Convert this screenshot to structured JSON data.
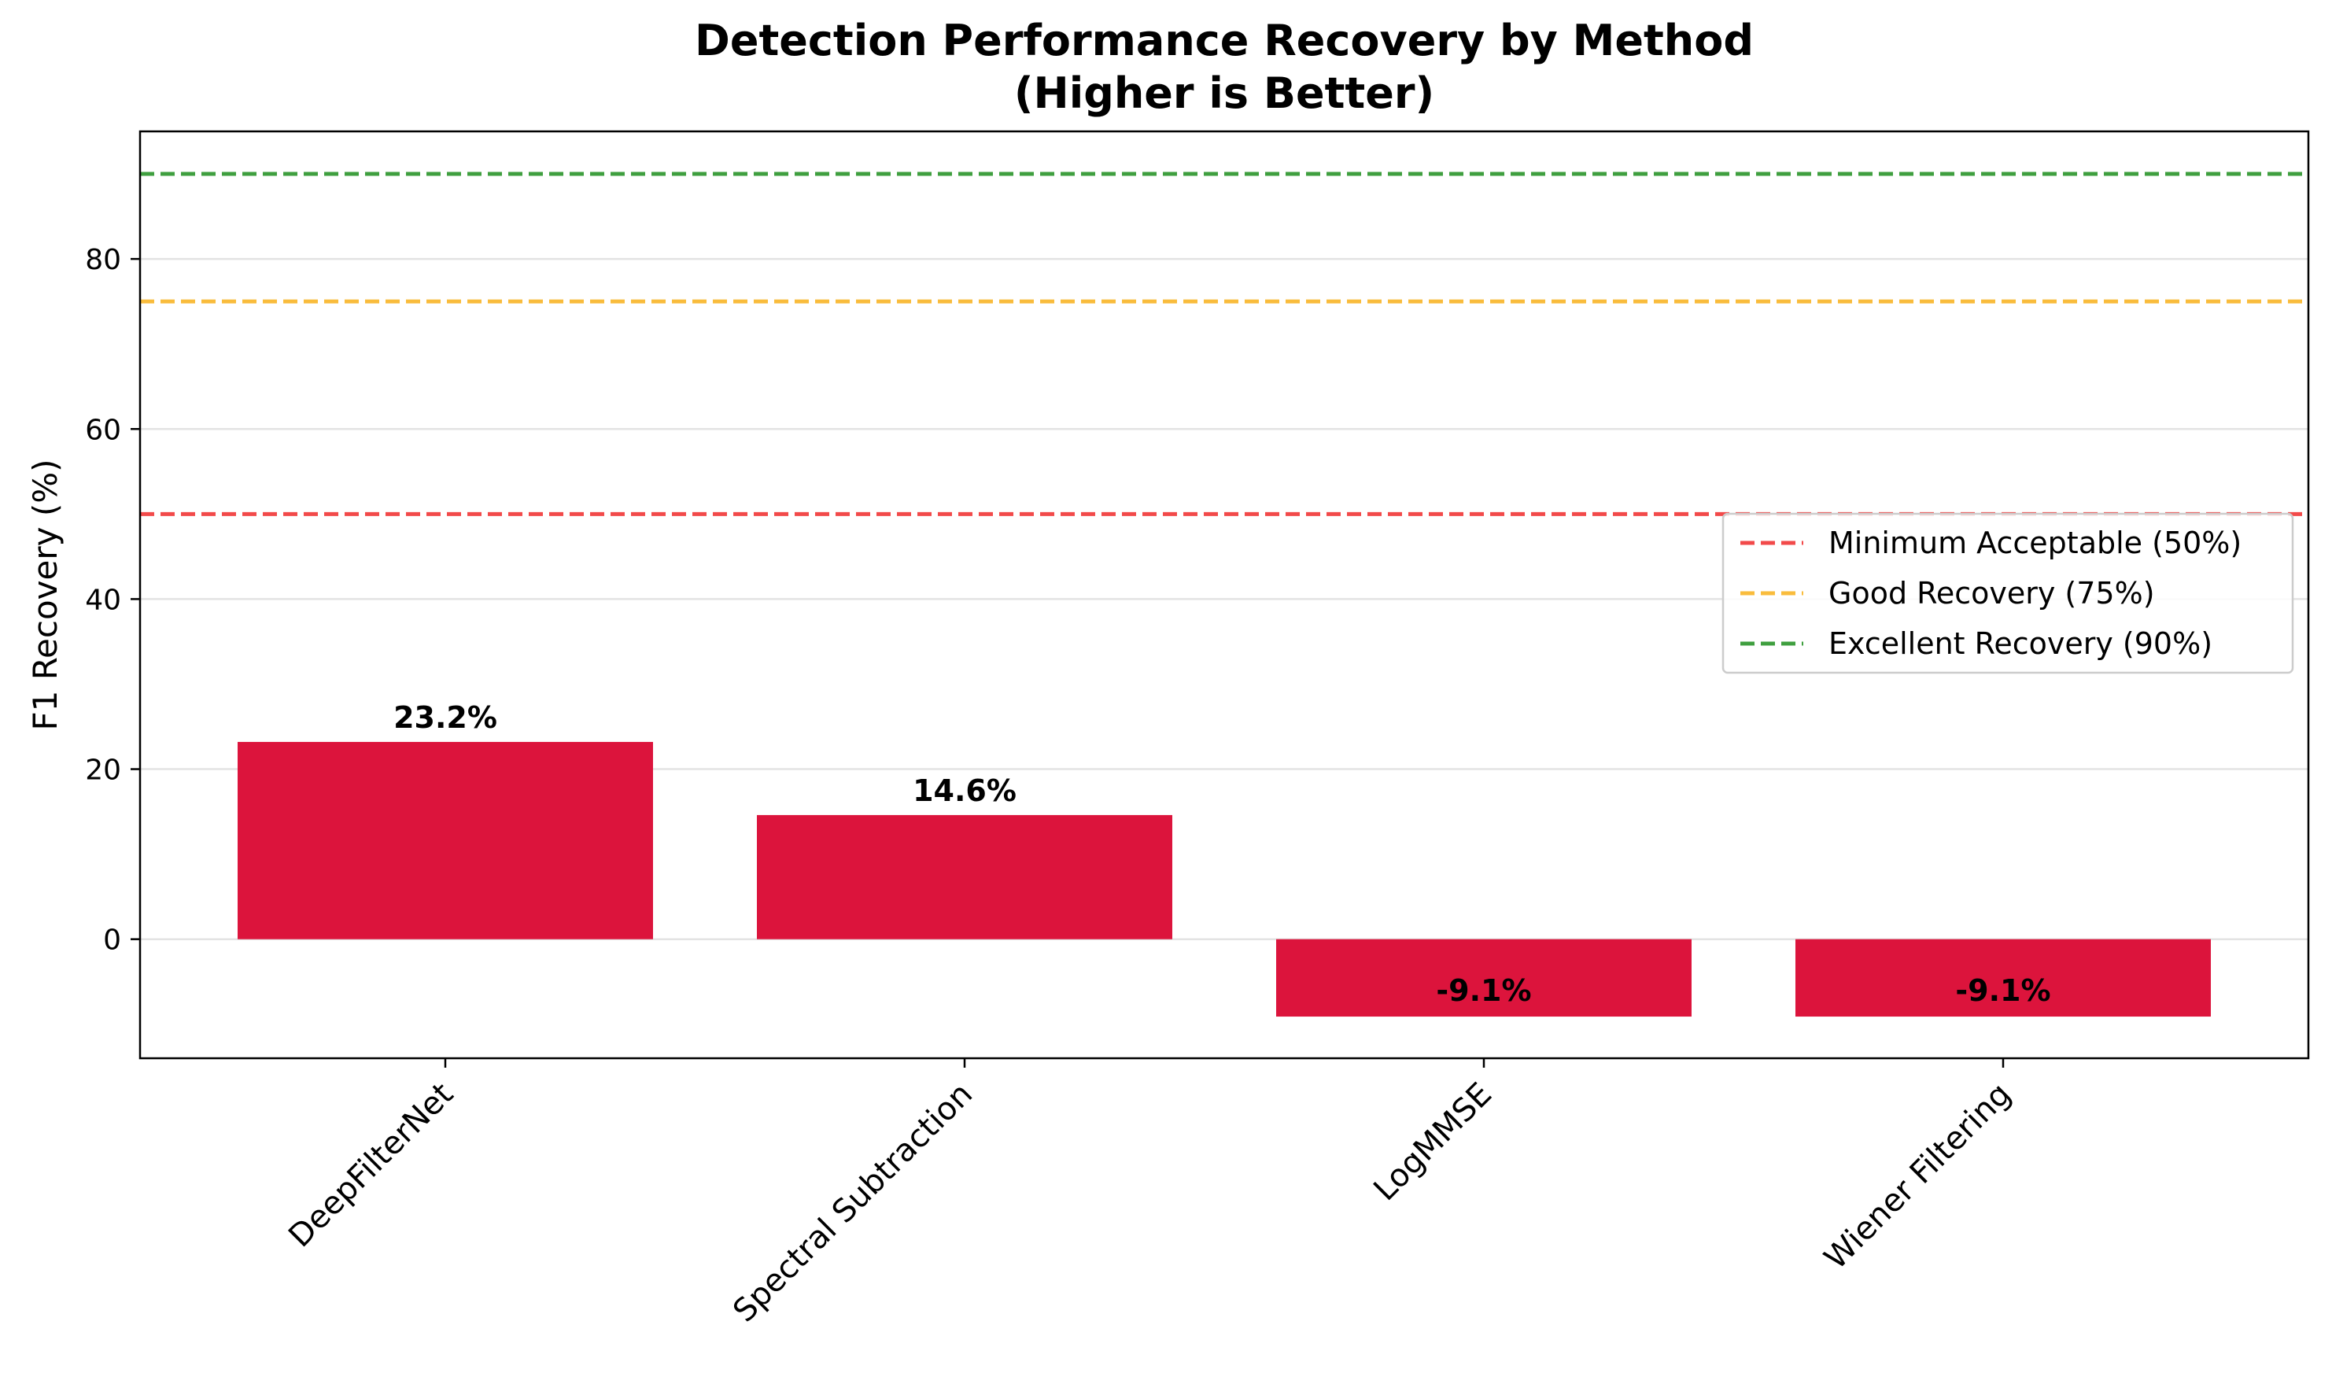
{
  "chart_data": {
    "type": "bar",
    "title": "Detection Performance Recovery by Method",
    "subtitle": "(Higher is Better)",
    "xlabel": "",
    "ylabel": "F1 Recovery (%)",
    "categories": [
      "DeepFilterNet",
      "Spectral Subtraction",
      "LogMMSE",
      "Wiener Filtering"
    ],
    "values": [
      23.2,
      14.6,
      -9.1,
      -9.1
    ],
    "value_labels": [
      "23.2%",
      "14.6%",
      "-9.1%",
      "-9.1%"
    ],
    "bar_color": "#dc143c",
    "ylim": [
      -14,
      95
    ],
    "yticks": [
      0,
      20,
      40,
      60,
      80
    ],
    "ytick_labels": [
      "0",
      "20",
      "40",
      "60",
      "80"
    ],
    "grid": "horizontal",
    "reference_lines": [
      {
        "name": "Minimum Acceptable (50%)",
        "value": 50,
        "color": "#f24a4a"
      },
      {
        "name": "Good Recovery (75%)",
        "value": 75,
        "color": "#f9bc3c"
      },
      {
        "name": "Excellent Recovery (90%)",
        "value": 90,
        "color": "#3f9f3f"
      }
    ],
    "legend_position": "right"
  }
}
